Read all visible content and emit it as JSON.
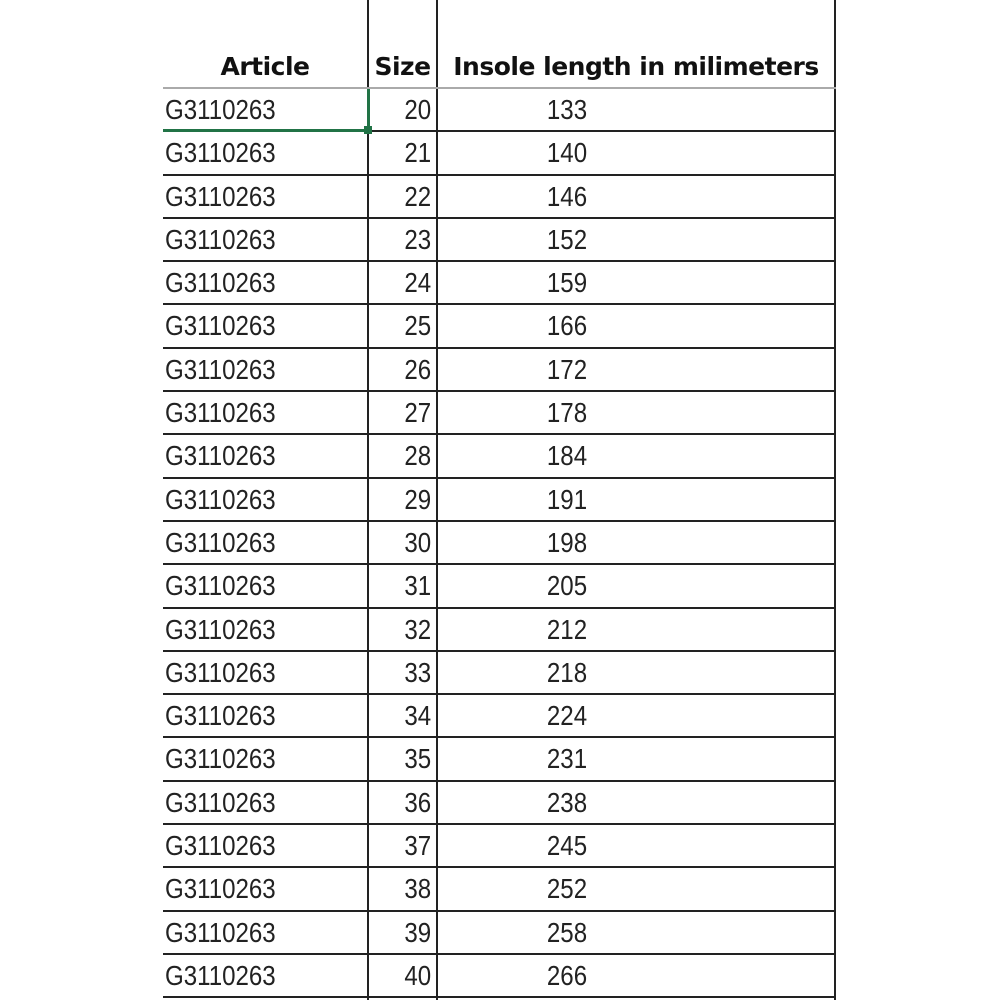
{
  "headers": {
    "article": "Article",
    "size": "Size",
    "insole": "Insole length in milimeters"
  },
  "selection_color": "#217346",
  "rows": [
    {
      "article": "G3110263",
      "size": "20",
      "length": "133"
    },
    {
      "article": "G3110263",
      "size": "21",
      "length": "140"
    },
    {
      "article": "G3110263",
      "size": "22",
      "length": "146"
    },
    {
      "article": "G3110263",
      "size": "23",
      "length": "152"
    },
    {
      "article": "G3110263",
      "size": "24",
      "length": "159"
    },
    {
      "article": "G3110263",
      "size": "25",
      "length": "166"
    },
    {
      "article": "G3110263",
      "size": "26",
      "length": "172"
    },
    {
      "article": "G3110263",
      "size": "27",
      "length": "178"
    },
    {
      "article": "G3110263",
      "size": "28",
      "length": "184"
    },
    {
      "article": "G3110263",
      "size": "29",
      "length": "191"
    },
    {
      "article": "G3110263",
      "size": "30",
      "length": "198"
    },
    {
      "article": "G3110263",
      "size": "31",
      "length": "205"
    },
    {
      "article": "G3110263",
      "size": "32",
      "length": "212"
    },
    {
      "article": "G3110263",
      "size": "33",
      "length": "218"
    },
    {
      "article": "G3110263",
      "size": "34",
      "length": "224"
    },
    {
      "article": "G3110263",
      "size": "35",
      "length": "231"
    },
    {
      "article": "G3110263",
      "size": "36",
      "length": "238"
    },
    {
      "article": "G3110263",
      "size": "37",
      "length": "245"
    },
    {
      "article": "G3110263",
      "size": "38",
      "length": "252"
    },
    {
      "article": "G3110263",
      "size": "39",
      "length": "258"
    },
    {
      "article": "G3110263",
      "size": "40",
      "length": "266"
    }
  ]
}
